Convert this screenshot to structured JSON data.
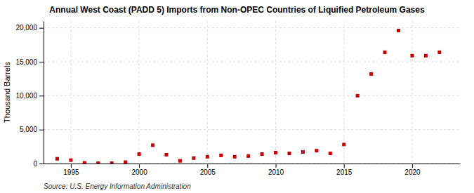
{
  "chart_data": {
    "type": "scatter",
    "title": "Annual West Coast (PADD 5) Imports from Non-OPEC Countries of Liquified Petroleum Gases",
    "ylabel": "Thousand Barrels",
    "source": "Source: U.S. Energy Information Administration",
    "color": "#cc0000",
    "marker": "square",
    "x": [
      1994,
      1995,
      1996,
      1997,
      1998,
      1999,
      2000,
      2001,
      2002,
      2003,
      2004,
      2005,
      2006,
      2007,
      2008,
      2009,
      2010,
      2011,
      2012,
      2013,
      2014,
      2015,
      2016,
      2017,
      2018,
      2019,
      2020,
      2021,
      2022
    ],
    "values": [
      700,
      500,
      100,
      50,
      50,
      200,
      1400,
      2700,
      1300,
      400,
      800,
      1000,
      1200,
      1000,
      1100,
      1400,
      1600,
      1500,
      1700,
      1900,
      1500,
      2800,
      10000,
      13200,
      16400,
      19600,
      15900,
      15900,
      16400
    ],
    "xlim": [
      1993.0,
      2023.5
    ],
    "ylim": [
      0,
      21000
    ],
    "xticks": [
      1995,
      2000,
      2005,
      2010,
      2015,
      2020
    ],
    "yticks": [
      0,
      {
        "value": 5000,
        "label": "5,000"
      },
      {
        "value": 10000,
        "label": "10,000"
      },
      {
        "value": 15000,
        "label": "15,000"
      },
      {
        "value": 20000,
        "label": "20,000"
      }
    ],
    "grid": true
  }
}
